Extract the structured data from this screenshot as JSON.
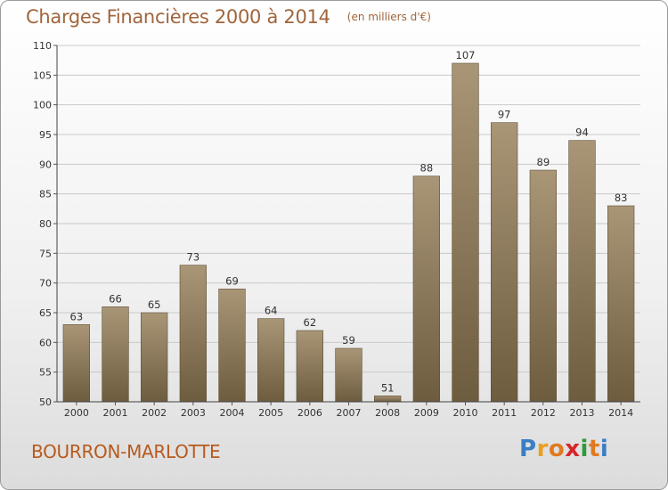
{
  "header": {
    "title": "Charges Financières 2000 à 2014",
    "subtitle": "(en milliers d'€)"
  },
  "footer": {
    "city": "BOURRON-MARLOTTE",
    "brand_letters": [
      "P",
      "r",
      "o",
      "x",
      "i",
      "t",
      "i"
    ],
    "brand_colors": [
      "#3a7fc4",
      "#e8a020",
      "#e07a20",
      "#d8252a",
      "#2f9a3a",
      "#e07a20",
      "#3a7fc4"
    ]
  },
  "colors": {
    "bar_top": "#a99677",
    "bar_bottom": "#6e5c3f",
    "grid": "#c9c9c9",
    "title": "#a0653c"
  },
  "chart_data": {
    "type": "bar",
    "title": "Charges Financières 2000 à 2014",
    "subtitle": "(en milliers d'€)",
    "categories": [
      "2000",
      "2001",
      "2002",
      "2003",
      "2004",
      "2005",
      "2006",
      "2007",
      "2008",
      "2009",
      "2010",
      "2011",
      "2012",
      "2013",
      "2014"
    ],
    "values": [
      63,
      66,
      65,
      73,
      69,
      64,
      62,
      59,
      51,
      88,
      107,
      97,
      89,
      94,
      83
    ],
    "ylim": [
      50,
      110
    ],
    "yticks": [
      50,
      55,
      60,
      65,
      70,
      75,
      80,
      85,
      90,
      95,
      100,
      105,
      110
    ],
    "grid": true,
    "data_labels": true
  }
}
